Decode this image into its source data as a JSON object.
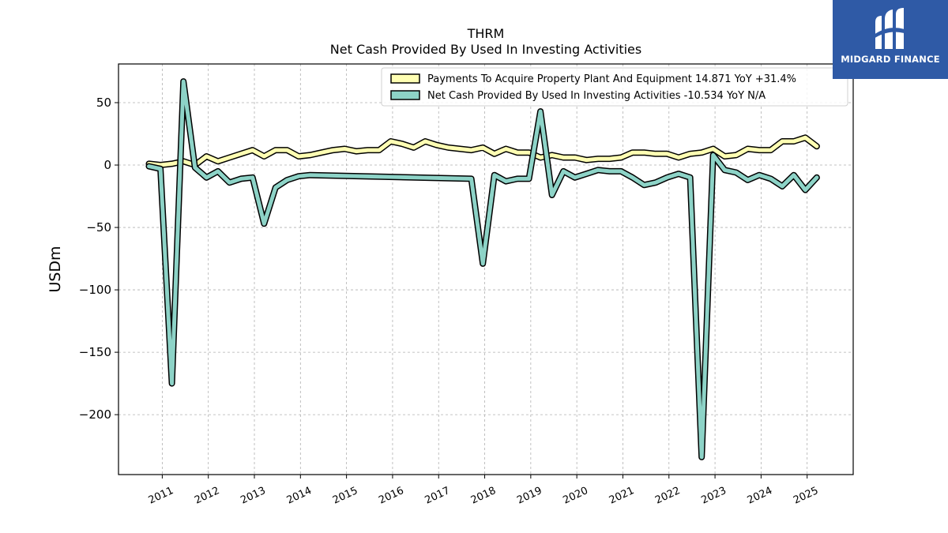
{
  "chart_data": {
    "type": "line",
    "title": "THRM",
    "subtitle": "Net Cash Provided By Used In Investing Activities",
    "ylabel": "USDm",
    "xlabel": "",
    "xlim": [
      2010.05,
      2026.0
    ],
    "ylim": [
      -248,
      81
    ],
    "grid": true,
    "legend_position": "top-right",
    "yticks": [
      50,
      0,
      -50,
      -100,
      -150,
      -200
    ],
    "ytick_labels": [
      "50",
      "0",
      "−50",
      "−100",
      "−150",
      "−200"
    ],
    "xticks": [
      2011,
      2012,
      2013,
      2014,
      2015,
      2016,
      2017,
      2018,
      2019,
      2020,
      2021,
      2022,
      2023,
      2024,
      2025
    ],
    "xtick_labels": [
      "2011",
      "2012",
      "2013",
      "2014",
      "2015",
      "2016",
      "2017",
      "2018",
      "2019",
      "2020",
      "2021",
      "2022",
      "2023",
      "2024",
      "2025"
    ],
    "series": [
      {
        "name": "Payments To Acquire Property Plant And Equipment  14.871 YoY +31.4%",
        "color": "#ffffb3",
        "x": [
          2010.71,
          2010.96,
          2011.21,
          2011.46,
          2011.71,
          2011.96,
          2012.21,
          2012.46,
          2012.71,
          2012.96,
          2013.21,
          2013.46,
          2013.71,
          2013.96,
          2014.21,
          2014.46,
          2014.71,
          2014.96,
          2015.21,
          2015.46,
          2015.71,
          2015.96,
          2016.21,
          2016.46,
          2016.71,
          2016.96,
          2017.21,
          2017.46,
          2017.71,
          2017.96,
          2018.21,
          2018.46,
          2018.71,
          2018.96,
          2019.21,
          2019.46,
          2019.71,
          2019.96,
          2020.21,
          2020.46,
          2020.71,
          2020.96,
          2021.21,
          2021.46,
          2021.71,
          2021.96,
          2022.21,
          2022.46,
          2022.71,
          2022.96,
          2023.21,
          2023.46,
          2023.71,
          2023.96,
          2024.21,
          2024.46,
          2024.71,
          2024.96,
          2025.21
        ],
        "values": [
          1,
          0,
          1,
          3,
          0,
          7,
          3,
          6,
          9,
          12,
          7,
          12,
          12,
          7,
          8,
          10,
          12,
          13,
          11,
          12,
          12,
          19,
          17,
          14,
          19,
          16,
          14,
          13,
          12,
          14,
          9,
          13,
          10,
          10,
          6,
          8,
          6,
          6,
          4,
          5,
          5,
          6,
          10,
          10,
          9,
          9,
          6,
          9,
          10,
          13,
          7,
          8,
          13,
          12,
          12,
          19,
          19,
          22,
          15
        ]
      },
      {
        "name": "Net Cash Provided By Used In Investing Activities  -10.534 YoY N/A",
        "color": "#8dd3c7",
        "x": [
          2010.71,
          2010.96,
          2011.21,
          2011.46,
          2011.71,
          2011.96,
          2012.21,
          2012.46,
          2012.71,
          2012.96,
          2013.21,
          2013.46,
          2013.71,
          2013.96,
          2014.21,
          2017.71,
          2017.96,
          2018.21,
          2018.46,
          2018.71,
          2018.96,
          2019.21,
          2019.46,
          2019.71,
          2019.96,
          2020.21,
          2020.46,
          2020.71,
          2020.96,
          2021.21,
          2021.46,
          2021.71,
          2021.96,
          2022.21,
          2022.46,
          2022.71,
          2022.96,
          2023.21,
          2023.46,
          2023.71,
          2023.96,
          2024.21,
          2024.46,
          2024.71,
          2024.96,
          2025.21
        ],
        "values": [
          -1,
          -3,
          -175,
          67,
          -2,
          -10,
          -5,
          -14,
          -11,
          -10,
          -47,
          -18,
          -12,
          -9,
          -8,
          -11,
          -79,
          -8,
          -13,
          -11,
          -11,
          43,
          -24,
          -5,
          -10,
          -7,
          -4,
          -5,
          -5,
          -10,
          -16,
          -14,
          -10,
          -7,
          -10,
          -234,
          8,
          -4,
          -6,
          -12,
          -8,
          -11,
          -17,
          -8,
          -20,
          -10
        ]
      }
    ]
  },
  "logo": {
    "text": "MIDGARD FINANCE"
  }
}
